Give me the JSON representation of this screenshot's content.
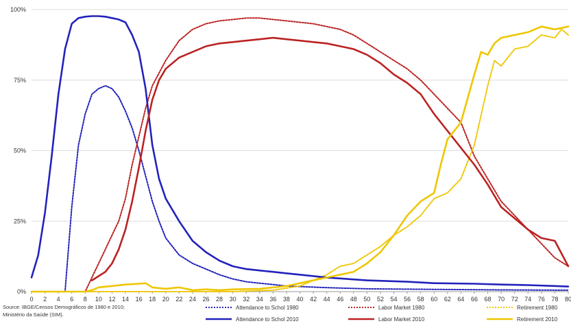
{
  "source": {
    "line1": "Source: IBGE/Censos Demográficos de 1980 e 2010;",
    "line2": "Ministério da Saúde (SIM)."
  },
  "colors": {
    "school": "#2222bb",
    "labor": "#bb2222",
    "retirement": "#eec600",
    "grid": "#dcdcdc",
    "axis": "#999999"
  },
  "chart_data": {
    "type": "line",
    "title": "",
    "xlabel": "",
    "ylabel": "",
    "xlim": [
      0,
      80
    ],
    "ylim": [
      0,
      100
    ],
    "x_ticks": [
      0,
      2,
      4,
      6,
      8,
      10,
      12,
      14,
      16,
      18,
      20,
      22,
      24,
      26,
      28,
      30,
      32,
      34,
      36,
      38,
      40,
      42,
      44,
      46,
      48,
      50,
      52,
      54,
      56,
      58,
      60,
      62,
      64,
      66,
      68,
      70,
      72,
      74,
      76,
      78,
      80
    ],
    "y_ticks": [
      {
        "value": 0,
        "label": "0%"
      },
      {
        "value": 25,
        "label": "25%"
      },
      {
        "value": 50,
        "label": "50%"
      },
      {
        "value": 75,
        "label": "75%"
      },
      {
        "value": 100,
        "label": "100%"
      }
    ],
    "grid": true,
    "legend_position": "bottom",
    "series": [
      {
        "name": "Attendance to Schol 1980",
        "color": "#2222bb",
        "dash": "dotted",
        "points": [
          [
            0,
            0
          ],
          [
            2,
            0
          ],
          [
            4,
            0
          ],
          [
            5,
            0
          ],
          [
            6,
            30
          ],
          [
            7,
            52
          ],
          [
            8,
            63
          ],
          [
            9,
            70
          ],
          [
            10,
            72
          ],
          [
            11,
            73
          ],
          [
            12,
            72
          ],
          [
            13,
            69
          ],
          [
            14,
            64
          ],
          [
            15,
            58
          ],
          [
            16,
            50
          ],
          [
            17,
            41
          ],
          [
            18,
            32
          ],
          [
            19,
            25
          ],
          [
            20,
            19
          ],
          [
            22,
            13
          ],
          [
            24,
            10
          ],
          [
            26,
            8
          ],
          [
            28,
            6
          ],
          [
            30,
            4.5
          ],
          [
            32,
            3.5
          ],
          [
            34,
            3
          ],
          [
            36,
            2.5
          ],
          [
            38,
            2
          ],
          [
            40,
            1.8
          ],
          [
            44,
            1.4
          ],
          [
            50,
            1
          ],
          [
            60,
            0.8
          ],
          [
            70,
            0.6
          ],
          [
            80,
            0.5
          ]
        ]
      },
      {
        "name": "Labor Market 1980",
        "color": "#bb2222",
        "dash": "dotted",
        "points": [
          [
            0,
            0
          ],
          [
            8,
            0
          ],
          [
            9,
            5
          ],
          [
            10,
            10
          ],
          [
            11,
            15
          ],
          [
            12,
            20
          ],
          [
            13,
            25
          ],
          [
            14,
            33
          ],
          [
            15,
            45
          ],
          [
            16,
            55
          ],
          [
            17,
            65
          ],
          [
            18,
            73
          ],
          [
            20,
            82
          ],
          [
            22,
            89
          ],
          [
            24,
            93
          ],
          [
            26,
            95
          ],
          [
            28,
            96
          ],
          [
            30,
            96.5
          ],
          [
            32,
            97
          ],
          [
            34,
            97
          ],
          [
            36,
            96.5
          ],
          [
            38,
            96
          ],
          [
            40,
            95.5
          ],
          [
            42,
            95
          ],
          [
            44,
            94
          ],
          [
            46,
            93
          ],
          [
            48,
            91
          ],
          [
            50,
            88
          ],
          [
            52,
            85
          ],
          [
            54,
            82
          ],
          [
            56,
            79
          ],
          [
            58,
            75
          ],
          [
            60,
            70
          ],
          [
            62,
            65
          ],
          [
            64,
            60
          ],
          [
            66,
            48
          ],
          [
            68,
            40
          ],
          [
            70,
            32
          ],
          [
            72,
            27
          ],
          [
            74,
            22
          ],
          [
            76,
            17
          ],
          [
            78,
            12
          ],
          [
            80,
            9
          ]
        ]
      },
      {
        "name": "Retirement 1980",
        "color": "#eec600",
        "dash": "dotted",
        "points": [
          [
            0,
            0
          ],
          [
            20,
            0
          ],
          [
            30,
            0
          ],
          [
            36,
            0.5
          ],
          [
            40,
            2
          ],
          [
            44,
            6
          ],
          [
            46,
            9
          ],
          [
            48,
            10
          ],
          [
            50,
            13
          ],
          [
            52,
            16
          ],
          [
            54,
            20
          ],
          [
            56,
            23
          ],
          [
            58,
            27
          ],
          [
            60,
            33
          ],
          [
            62,
            35
          ],
          [
            64,
            40
          ],
          [
            66,
            52
          ],
          [
            68,
            73
          ],
          [
            69,
            82
          ],
          [
            70,
            80
          ],
          [
            72,
            86
          ],
          [
            74,
            87
          ],
          [
            76,
            91
          ],
          [
            78,
            90
          ],
          [
            79,
            93
          ],
          [
            80,
            91
          ]
        ]
      },
      {
        "name": "Attendance to Schol 2010",
        "color": "#2222bb",
        "dash": "solid",
        "points": [
          [
            0,
            5
          ],
          [
            1,
            13
          ],
          [
            2,
            28
          ],
          [
            3,
            48
          ],
          [
            4,
            70
          ],
          [
            5,
            86
          ],
          [
            6,
            95
          ],
          [
            7,
            97
          ],
          [
            8,
            97.5
          ],
          [
            9,
            97.7
          ],
          [
            10,
            97.7
          ],
          [
            11,
            97.5
          ],
          [
            12,
            97
          ],
          [
            13,
            96.5
          ],
          [
            14,
            95.5
          ],
          [
            15,
            91
          ],
          [
            16,
            85
          ],
          [
            17,
            72
          ],
          [
            18,
            52
          ],
          [
            19,
            40
          ],
          [
            20,
            33
          ],
          [
            22,
            25
          ],
          [
            24,
            18
          ],
          [
            26,
            14
          ],
          [
            28,
            11
          ],
          [
            30,
            9
          ],
          [
            32,
            8
          ],
          [
            34,
            7.5
          ],
          [
            36,
            7
          ],
          [
            38,
            6.5
          ],
          [
            40,
            6
          ],
          [
            44,
            5
          ],
          [
            50,
            4
          ],
          [
            56,
            3.5
          ],
          [
            60,
            3
          ],
          [
            66,
            2.8
          ],
          [
            70,
            2.5
          ],
          [
            74,
            2.3
          ],
          [
            78,
            2
          ],
          [
            80,
            1.8
          ]
        ]
      },
      {
        "name": "Labor Market 2010",
        "color": "#bb2222",
        "dash": "solid",
        "points": [
          [
            9,
            4
          ],
          [
            10,
            5.5
          ],
          [
            11,
            7
          ],
          [
            12,
            10
          ],
          [
            13,
            15
          ],
          [
            14,
            22
          ],
          [
            15,
            32
          ],
          [
            16,
            44
          ],
          [
            17,
            57
          ],
          [
            18,
            68
          ],
          [
            19,
            75
          ],
          [
            20,
            79
          ],
          [
            22,
            83
          ],
          [
            24,
            85
          ],
          [
            26,
            87
          ],
          [
            28,
            88
          ],
          [
            30,
            88.5
          ],
          [
            32,
            89
          ],
          [
            34,
            89.5
          ],
          [
            36,
            90
          ],
          [
            38,
            89.5
          ],
          [
            40,
            89
          ],
          [
            42,
            88.5
          ],
          [
            44,
            88
          ],
          [
            46,
            87
          ],
          [
            48,
            86
          ],
          [
            50,
            84
          ],
          [
            52,
            81
          ],
          [
            54,
            77
          ],
          [
            56,
            74
          ],
          [
            58,
            70
          ],
          [
            60,
            63
          ],
          [
            62,
            57
          ],
          [
            64,
            51
          ],
          [
            66,
            45
          ],
          [
            68,
            38
          ],
          [
            70,
            30
          ],
          [
            72,
            26
          ],
          [
            74,
            22
          ],
          [
            76,
            19
          ],
          [
            78,
            18
          ],
          [
            80,
            9
          ]
        ]
      },
      {
        "name": "Retirement 2010",
        "color": "#eec600",
        "dash": "solid",
        "points": [
          [
            0,
            0
          ],
          [
            8,
            0
          ],
          [
            9,
            0.5
          ],
          [
            10,
            1.5
          ],
          [
            12,
            2
          ],
          [
            14,
            2.5
          ],
          [
            16,
            2.8
          ],
          [
            17,
            3
          ],
          [
            18,
            1.5
          ],
          [
            20,
            1
          ],
          [
            22,
            1.5
          ],
          [
            24,
            0.5
          ],
          [
            26,
            0.8
          ],
          [
            28,
            0.5
          ],
          [
            30,
            0.8
          ],
          [
            34,
            1
          ],
          [
            38,
            2
          ],
          [
            40,
            3
          ],
          [
            44,
            5
          ],
          [
            46,
            6
          ],
          [
            48,
            7
          ],
          [
            50,
            10
          ],
          [
            52,
            14
          ],
          [
            54,
            20
          ],
          [
            56,
            27
          ],
          [
            58,
            32
          ],
          [
            60,
            35
          ],
          [
            61,
            45
          ],
          [
            62,
            54
          ],
          [
            64,
            60
          ],
          [
            66,
            77
          ],
          [
            67,
            85
          ],
          [
            68,
            84
          ],
          [
            69,
            88
          ],
          [
            70,
            90
          ],
          [
            72,
            91
          ],
          [
            74,
            92
          ],
          [
            76,
            94
          ],
          [
            78,
            93
          ],
          [
            80,
            94
          ]
        ]
      }
    ]
  }
}
